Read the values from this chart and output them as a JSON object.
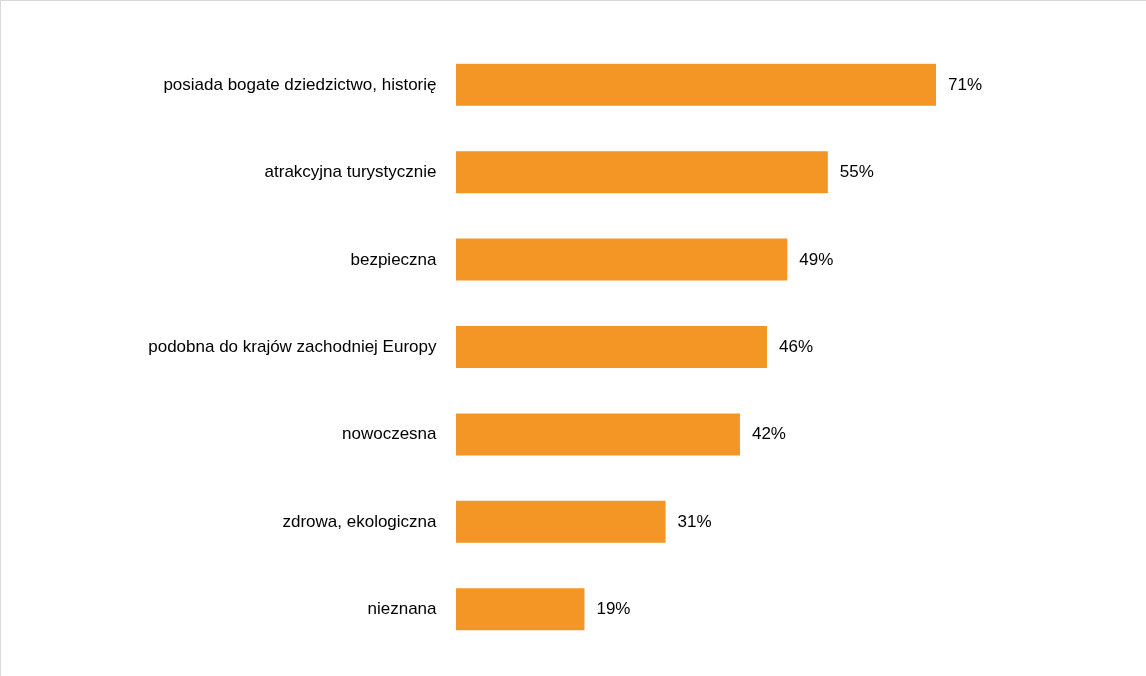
{
  "chart_data": {
    "type": "bar",
    "orientation": "horizontal",
    "categories": [
      "posiada bogate dziedzictwo, historię",
      "atrakcyjna turystycznie",
      "bezpieczna",
      "podobna do krajów zachodniej Europy",
      "nowoczesna",
      "zdrowa, ekologiczna",
      "nieznana"
    ],
    "values": [
      71,
      55,
      49,
      46,
      42,
      31,
      19
    ],
    "value_labels": [
      "71%",
      "55%",
      "49%",
      "46%",
      "42%",
      "31%",
      "19%"
    ],
    "color": "#f39626",
    "tick_labels": "y"
  }
}
